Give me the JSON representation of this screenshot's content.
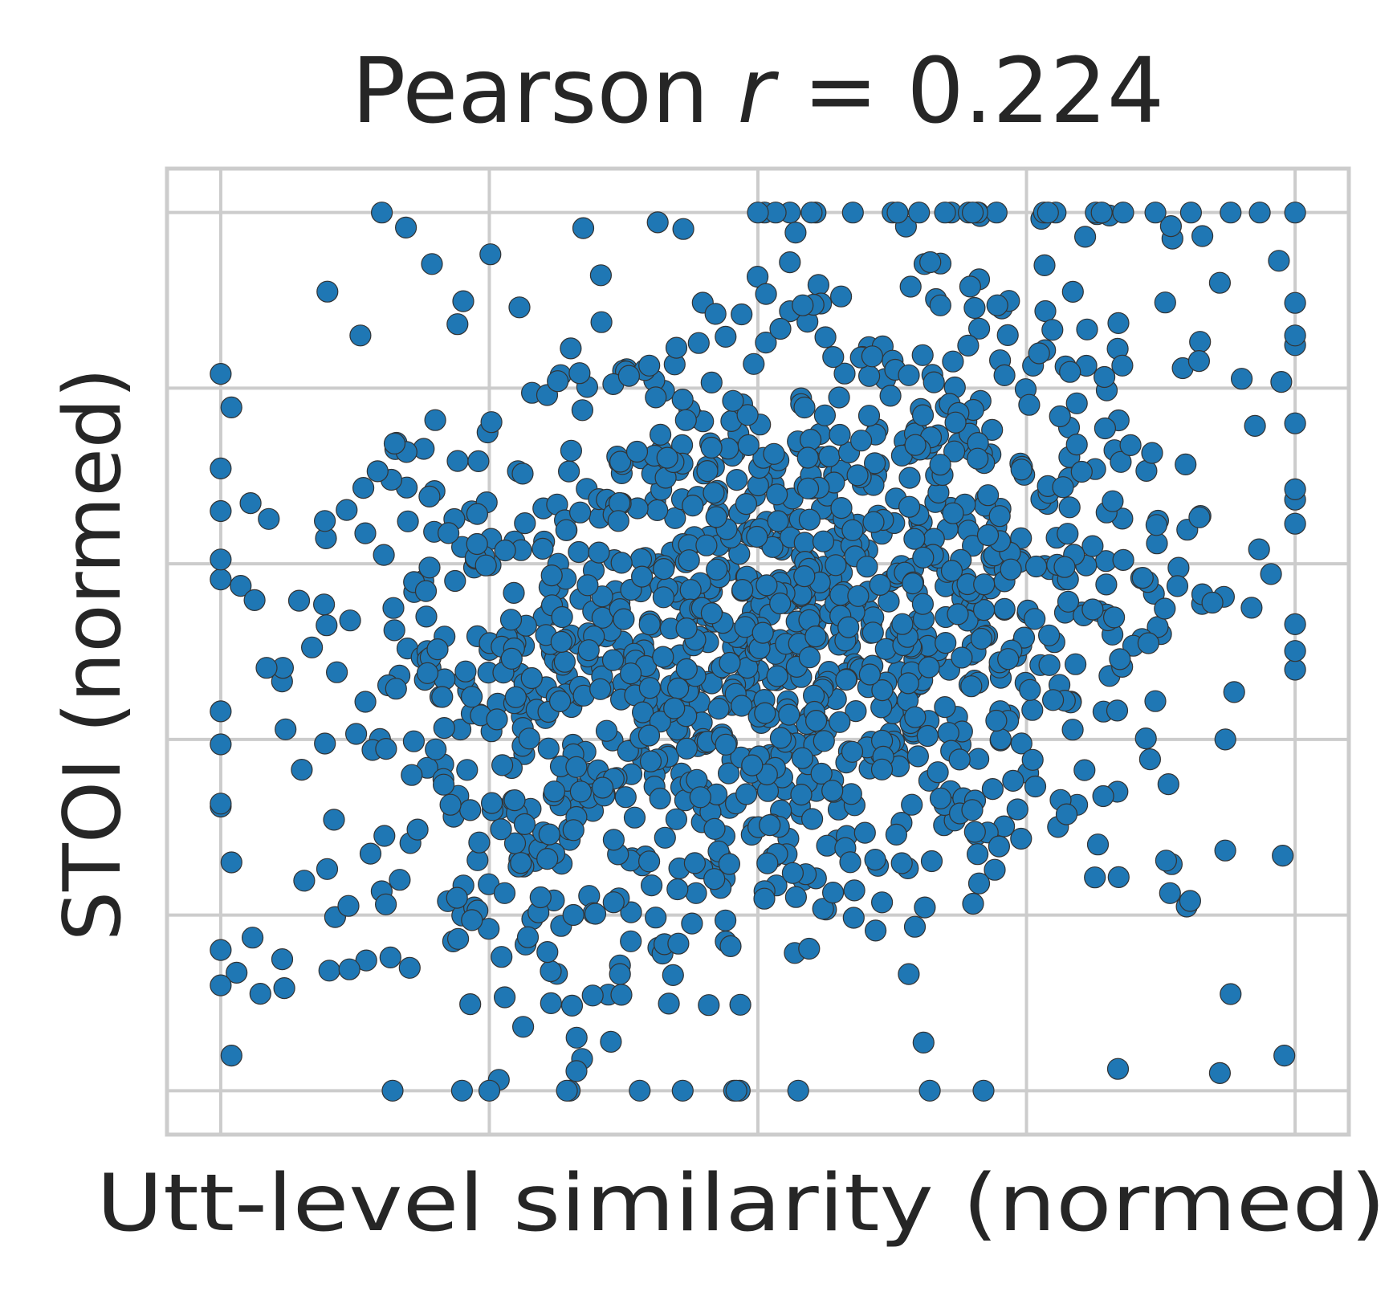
{
  "chart_data": {
    "type": "scatter",
    "title": {
      "prefix": "Pearson ",
      "variable": "r",
      "suffix": " = 0.224"
    },
    "xlabel": "Utt-level similarity (normed)",
    "ylabel": "STOI (normed)",
    "xlim": [
      -0.05,
      1.05
    ],
    "ylim": [
      -0.05,
      1.05
    ],
    "x_ticks": [
      0,
      0.25,
      0.5,
      0.75,
      1.0
    ],
    "y_ticks": [
      0,
      0.2,
      0.4,
      0.6,
      0.8,
      1.0
    ],
    "tick_labels_visible": false,
    "grid": true,
    "legend": "none",
    "point_color": "#1f77b4",
    "edge_color": "#333333",
    "n_points": 1500,
    "pearson_r": 0.224,
    "x_mean": 0.5,
    "y_mean": 0.52,
    "sample_points": [
      {
        "x": 0.15,
        "y": 1.0
      },
      {
        "x": 0.13,
        "y": 0.86
      },
      {
        "x": 0.0,
        "y": 0.66
      },
      {
        "x": 0.01,
        "y": 0.04
      },
      {
        "x": 0.16,
        "y": 0.0
      },
      {
        "x": 0.5,
        "y": 1.0
      },
      {
        "x": 0.55,
        "y": 1.0
      },
      {
        "x": 0.63,
        "y": 1.0
      },
      {
        "x": 0.65,
        "y": 1.0
      },
      {
        "x": 0.7,
        "y": 1.0
      },
      {
        "x": 0.77,
        "y": 1.0
      },
      {
        "x": 0.82,
        "y": 1.0
      },
      {
        "x": 0.84,
        "y": 1.0
      },
      {
        "x": 0.87,
        "y": 1.0
      },
      {
        "x": 0.94,
        "y": 1.0
      },
      {
        "x": 0.93,
        "y": 0.92
      },
      {
        "x": 1.0,
        "y": 0.86
      },
      {
        "x": 1.0,
        "y": 0.76
      },
      {
        "x": 0.99,
        "y": 0.04
      },
      {
        "x": 0.94,
        "y": 0.11
      },
      {
        "x": 0.93,
        "y": 0.02
      },
      {
        "x": 0.25,
        "y": 0.0
      },
      {
        "x": 0.39,
        "y": 0.0
      },
      {
        "x": 0.48,
        "y": 0.0
      },
      {
        "x": 0.66,
        "y": 0.0
      },
      {
        "x": 0.71,
        "y": 0.0
      },
      {
        "x": 0.0,
        "y": 0.12
      },
      {
        "x": 0.01,
        "y": 0.26
      }
    ]
  }
}
